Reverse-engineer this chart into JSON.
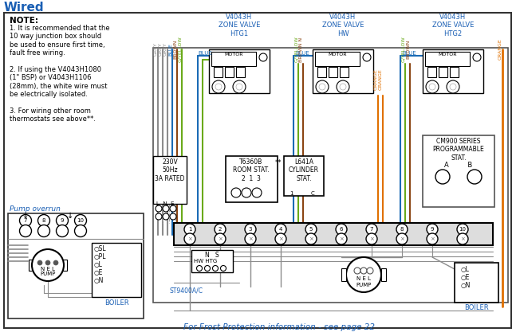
{
  "title": "Wired",
  "bg_color": "#ffffff",
  "border_color": "#333333",
  "note_title": "NOTE:",
  "note_lines": [
    "1. It is recommended that the",
    "10 way junction box should",
    "be used to ensure first time,",
    "fault free wiring.",
    "",
    "2. If using the V4043H1080",
    "(1\" BSP) or V4043H1106",
    "(28mm), the white wire must",
    "be electrically isolated.",
    "",
    "3. For wiring other room",
    "thermostats see above**."
  ],
  "pump_overrun_label": "Pump overrun",
  "valve_labels": [
    "V4043H\nZONE VALVE\nHTG1",
    "V4043H\nZONE VALVE\nHW",
    "V4043H\nZONE VALVE\nHTG2"
  ],
  "wire_colors": {
    "grey": "#8c8c8c",
    "blue": "#1a6bb5",
    "brown": "#8B4513",
    "orange": "#e07000",
    "green_yellow": "#6aaa1a",
    "black": "#222222",
    "white": "#ffffff"
  },
  "frost_text": "For Frost Protection information - see page 22",
  "text_color_blue": "#1a5fb4",
  "text_color_orange": "#e06000",
  "text_color_grey": "#666666"
}
